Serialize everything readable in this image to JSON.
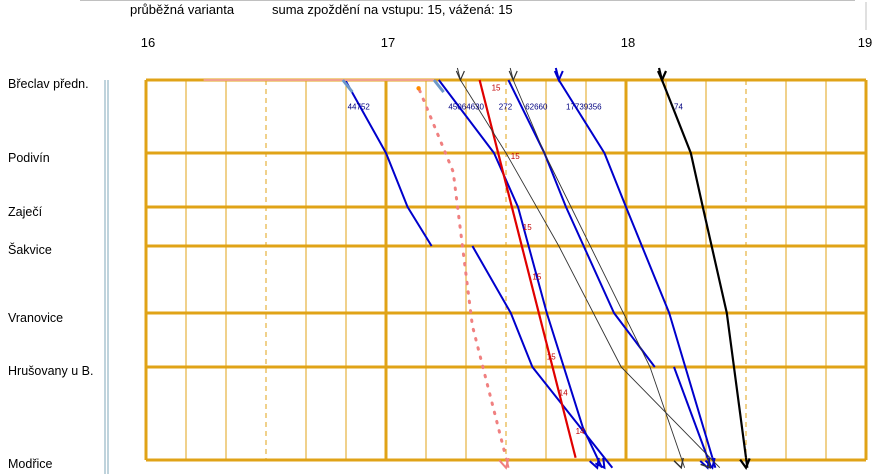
{
  "header": {
    "variant_label": "průběžná varianta",
    "delay_summary": "suma zpoždění na vstupu: 15,  vážená: 15"
  },
  "chart_data": {
    "type": "line",
    "title": "",
    "xlabel": "",
    "ylabel": "",
    "hours": [
      "16",
      "17",
      "18",
      "19"
    ],
    "xlim": [
      16.0,
      19.0
    ],
    "stations": [
      {
        "name": "Břeclav předn.",
        "km": 0
      },
      {
        "name": "Podivín",
        "km": 8.5
      },
      {
        "name": "Zaječí",
        "km": 12.8
      },
      {
        "name": "Šakvice",
        "km": 16.5
      },
      {
        "name": "Vranovice",
        "km": 23.6
      },
      {
        "name": "Hrušovany u B.",
        "km": 29.5
      },
      {
        "name": "Modřice",
        "km": 50
      }
    ],
    "colors": {
      "grid_major": "#e0a317",
      "grid_minor": "#e0a317",
      "blue": "#0000cc",
      "red": "#e00000",
      "black": "#000000",
      "thin": "#333333",
      "salmon": "#f08080",
      "pink": "#f2a08a",
      "steel": "#6d98c9",
      "delay_text": "#c00000",
      "label_text": "#000080"
    },
    "train_labels": [
      {
        "text": "44752",
        "x": 16.84,
        "km": 1.0
      },
      {
        "text": "45064630",
        "x": 17.26,
        "km": 1.0
      },
      {
        "text": "272",
        "x": 17.47,
        "km": 1.0
      },
      {
        "text": "62660",
        "x": 17.58,
        "km": 1.0
      },
      {
        "text": "17739356",
        "x": 17.75,
        "km": 1.0
      },
      {
        "text": "74",
        "x": 18.2,
        "km": 1.0
      }
    ],
    "delay_labels": [
      {
        "text": "15",
        "x": 17.44,
        "km": 0.4
      },
      {
        "text": "15",
        "x": 17.52,
        "km": 8.4
      },
      {
        "text": "15",
        "x": 17.57,
        "km": 14.3
      },
      {
        "text": "15",
        "x": 17.61,
        "km": 19.3
      },
      {
        "text": "15",
        "x": 17.67,
        "km": 27.9
      },
      {
        "text": "14",
        "x": 17.72,
        "km": 34.2
      },
      {
        "text": "14",
        "x": 17.79,
        "km": 42.7
      }
    ],
    "series": [
      {
        "color": "blue",
        "width": 2,
        "arrow": false,
        "points": [
          [
            16.83,
            0
          ],
          [
            17.0,
            8.5
          ],
          [
            17.09,
            12.8
          ],
          [
            17.19,
            16.5
          ]
        ]
      },
      {
        "color": "blue",
        "width": 2,
        "arrow": true,
        "points": [
          [
            17.22,
            0
          ],
          [
            17.45,
            8.5
          ],
          [
            17.55,
            12.8
          ],
          [
            17.67,
            23.6
          ],
          [
            17.82,
            42.8
          ],
          [
            17.88,
            49.5
          ]
        ]
      },
      {
        "color": "blue",
        "width": 2,
        "arrow": false,
        "points": [
          [
            17.51,
            0
          ],
          [
            17.66,
            8.5
          ],
          [
            17.75,
            12.8
          ],
          [
            17.95,
            23.6
          ],
          [
            18.12,
            29.5
          ]
        ]
      },
      {
        "color": "blue",
        "width": 2,
        "arrow": true,
        "points": [
          [
            17.36,
            16.5
          ],
          [
            17.52,
            23.6
          ],
          [
            17.61,
            29.5
          ],
          [
            17.91,
            49.5
          ]
        ]
      },
      {
        "color": "blue",
        "width": 2,
        "arrow": true,
        "points": [
          [
            17.72,
            0
          ],
          [
            17.91,
            8.5
          ],
          [
            18.0,
            12.8
          ],
          [
            18.18,
            23.6
          ],
          [
            18.36,
            49.5
          ]
        ]
      },
      {
        "color": "blue",
        "width": 2,
        "arrow": true,
        "points": [
          [
            18.2,
            29.5
          ],
          [
            18.34,
            49.5
          ]
        ]
      },
      {
        "color": "red",
        "width": 2.2,
        "arrow": false,
        "points": [
          [
            17.39,
            0
          ],
          [
            17.79,
            49.5
          ]
        ]
      },
      {
        "color": "black",
        "width": 2.2,
        "arrow": true,
        "points": [
          [
            18.15,
            0
          ],
          [
            18.27,
            8.5
          ],
          [
            18.32,
            12.8
          ],
          [
            18.42,
            23.6
          ],
          [
            18.5,
            49.5
          ]
        ]
      },
      {
        "color": "thin",
        "width": 0.9,
        "arrow": true,
        "points": [
          [
            17.31,
            0
          ],
          [
            17.5,
            8.5
          ],
          [
            17.72,
            16.5
          ],
          [
            17.98,
            29.5
          ],
          [
            18.35,
            49.5
          ]
        ]
      },
      {
        "color": "thin",
        "width": 0.9,
        "arrow": true,
        "points": [
          [
            17.53,
            0
          ],
          [
            17.66,
            8.5
          ],
          [
            18.1,
            29.5
          ],
          [
            18.23,
            49.5
          ]
        ]
      },
      {
        "color": "pink",
        "width": 2,
        "arrow": false,
        "points": [
          [
            16.24,
            0
          ],
          [
            17.2,
            0
          ]
        ]
      },
      {
        "color": "steel",
        "width": 3,
        "arrow": false,
        "points": [
          [
            16.82,
            0
          ],
          [
            16.86,
            1.4
          ]
        ]
      },
      {
        "color": "steel",
        "width": 3,
        "arrow": false,
        "points": [
          [
            17.2,
            0
          ],
          [
            17.24,
            1.4
          ]
        ]
      },
      {
        "color": "salmon",
        "width": 2,
        "arrow": true,
        "dotted": true,
        "points": [
          [
            17.14,
            1.2
          ],
          [
            17.28,
            10.0
          ],
          [
            17.36,
            25.0
          ],
          [
            17.5,
            49.5
          ]
        ]
      }
    ]
  }
}
